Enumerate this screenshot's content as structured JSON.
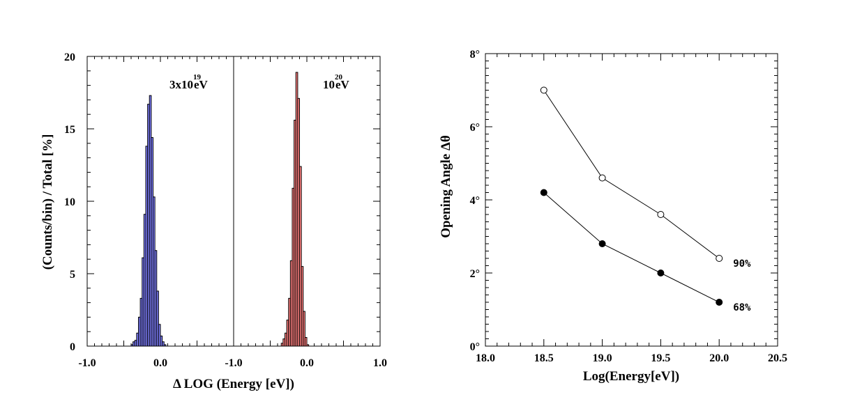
{
  "chart_data": [
    {
      "type": "histogram",
      "panels": [
        {
          "annotation": {
            "base": "3x10",
            "exponent": "19",
            "unit": "eV"
          },
          "color": "#8080ff",
          "bin_width": 0.025,
          "bin_start": -0.4,
          "counts": [
            0.1,
            0.3,
            0.4,
            0.9,
            2.0,
            3.3,
            6.1,
            9.1,
            13.8,
            16.7,
            17.3,
            14.4,
            10.3,
            6.6,
            3.8,
            1.5,
            0.7,
            0.3,
            0.1
          ]
        },
        {
          "annotation": {
            "base": "10",
            "exponent": "20",
            "unit": "eV"
          },
          "color": "#ff8080",
          "bin_width": 0.025,
          "bin_start": -0.35,
          "counts": [
            0.2,
            0.5,
            0.9,
            1.8,
            3.3,
            5.9,
            10.9,
            15.6,
            18.9,
            17.1,
            12.4,
            5.5,
            2.4,
            0.6,
            0.1
          ]
        }
      ],
      "xlim": [
        -1.0,
        1.0
      ],
      "ylim": [
        0,
        20
      ],
      "x_ticks": [
        "-1.0",
        "0.0",
        "-1.0",
        "0.0",
        "1.0"
      ],
      "y_ticks": [
        "0",
        "5",
        "10",
        "15",
        "20"
      ],
      "xlabel": "Δ LOG (Energy [eV])",
      "ylabel": "(Counts/bin) / Total [%]"
    },
    {
      "type": "line",
      "x": [
        18.5,
        19.0,
        19.5,
        20.0
      ],
      "series": [
        {
          "name": "90%",
          "values": [
            7.0,
            4.6,
            3.6,
            2.4
          ],
          "marker": "open-circle"
        },
        {
          "name": "68%",
          "values": [
            4.2,
            2.8,
            2.0,
            1.2
          ],
          "marker": "filled-circle"
        }
      ],
      "xlim": [
        18.0,
        20.5
      ],
      "ylim": [
        0,
        8
      ],
      "x_ticks": [
        "18.0",
        "18.5",
        "19.0",
        "19.5",
        "20.0",
        "20.5"
      ],
      "y_ticks": [
        "0°",
        "2°",
        "4°",
        "6°",
        "8°"
      ],
      "xlabel": "Log(Energy[eV])",
      "ylabel": "Opening Angle Δθ"
    }
  ]
}
